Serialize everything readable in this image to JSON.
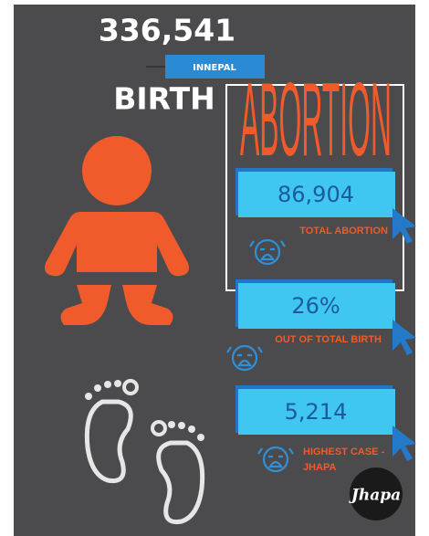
{
  "header": {
    "count": "336,541",
    "tag": "INNEPAL",
    "title": "BIRTH"
  },
  "panel": {
    "title": "ABORTION"
  },
  "stats": [
    {
      "value": "86,904",
      "label_lines": [
        "TOTAL ABORTION"
      ]
    },
    {
      "value": "26%",
      "label_lines": [
        "OUT OF TOTAL BIRTH"
      ]
    },
    {
      "value": "5,214",
      "label_lines": [
        "HIGHEST CASE -",
        "JHAPA"
      ]
    }
  ],
  "badge": "Jhapa"
}
